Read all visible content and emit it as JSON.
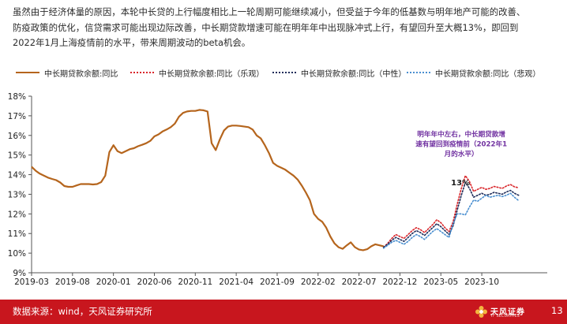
{
  "intro": {
    "lines": [
      "虽然由于经济体量的原因，本轮中长贷的上行幅度相比上一轮周期可能继续减小，但受益于今年的低基数与明年地产可能的改善、",
      "防疫政策的优化，信贷需求可能出现边际改善，中长期贷款增速可能在明年年中出现脉冲式上行，有望回升至大概13%，即回到",
      "2022年1月上海疫情前的水平，带来周期波动的beta机会。"
    ]
  },
  "legend": [
    {
      "label": "中长期贷款余额:同比",
      "color": "#b5651d",
      "style": "solid"
    },
    {
      "label": "中长期贷款余额:同比（乐观）",
      "color": "#d9262b",
      "style": "dotted"
    },
    {
      "label": "中长期贷款余额:同比（中性）",
      "color": "#1f2d5a",
      "style": "dotted"
    },
    {
      "label": "中长期贷款余额:同比（悲观）",
      "color": "#4a8fd0",
      "style": "dotted"
    }
  ],
  "chart_data": {
    "type": "line",
    "title": "",
    "xlabel": "",
    "ylabel": "",
    "ylim": [
      9,
      18
    ],
    "yticks": [
      "9%",
      "10%",
      "11%",
      "12%",
      "13%",
      "14%",
      "15%",
      "16%",
      "17%",
      "18%"
    ],
    "x_range_months": [
      0,
      63
    ],
    "xtick_labels": [
      {
        "label": "2019-03",
        "m": 0
      },
      {
        "label": "2019-08",
        "m": 5
      },
      {
        "label": "2020-01",
        "m": 10
      },
      {
        "label": "2020-06",
        "m": 15
      },
      {
        "label": "2020-11",
        "m": 20
      },
      {
        "label": "2021-04",
        "m": 25
      },
      {
        "label": "2021-09",
        "m": 30
      },
      {
        "label": "2022-02",
        "m": 35
      },
      {
        "label": "2022-07",
        "m": 40
      },
      {
        "label": "2022-12",
        "m": 45
      },
      {
        "label": "2023-05",
        "m": 50
      },
      {
        "label": "2023-10",
        "m": 55
      }
    ],
    "series": [
      {
        "name": "中长期贷款余额:同比",
        "color": "#b5651d",
        "style": "solid",
        "points": [
          [
            0,
            14.4
          ],
          [
            0.5,
            14.2
          ],
          [
            1,
            14.05
          ],
          [
            1.5,
            13.95
          ],
          [
            2,
            13.85
          ],
          [
            2.5,
            13.78
          ],
          [
            3,
            13.72
          ],
          [
            3.5,
            13.6
          ],
          [
            4,
            13.42
          ],
          [
            4.5,
            13.38
          ],
          [
            5,
            13.38
          ],
          [
            5.5,
            13.45
          ],
          [
            6,
            13.52
          ],
          [
            6.5,
            13.52
          ],
          [
            7,
            13.52
          ],
          [
            7.5,
            13.5
          ],
          [
            8,
            13.52
          ],
          [
            8.5,
            13.62
          ],
          [
            9,
            13.95
          ],
          [
            9.5,
            15.15
          ],
          [
            10,
            15.5
          ],
          [
            10.5,
            15.2
          ],
          [
            11,
            15.1
          ],
          [
            11.5,
            15.2
          ],
          [
            12,
            15.3
          ],
          [
            12.5,
            15.35
          ],
          [
            13,
            15.45
          ],
          [
            13.5,
            15.52
          ],
          [
            14,
            15.6
          ],
          [
            14.5,
            15.72
          ],
          [
            15,
            15.95
          ],
          [
            15.5,
            16.05
          ],
          [
            16,
            16.2
          ],
          [
            16.5,
            16.3
          ],
          [
            17,
            16.42
          ],
          [
            17.5,
            16.6
          ],
          [
            18,
            16.95
          ],
          [
            18.5,
            17.15
          ],
          [
            19,
            17.22
          ],
          [
            19.5,
            17.25
          ],
          [
            20,
            17.25
          ],
          [
            20.5,
            17.3
          ],
          [
            21,
            17.28
          ],
          [
            21.5,
            17.22
          ],
          [
            22,
            15.6
          ],
          [
            22.5,
            15.25
          ],
          [
            23,
            15.8
          ],
          [
            23.5,
            16.25
          ],
          [
            24,
            16.45
          ],
          [
            24.5,
            16.5
          ],
          [
            25,
            16.5
          ],
          [
            25.5,
            16.48
          ],
          [
            26,
            16.45
          ],
          [
            26.5,
            16.42
          ],
          [
            27,
            16.3
          ],
          [
            27.5,
            16.0
          ],
          [
            28,
            15.85
          ],
          [
            28.5,
            15.5
          ],
          [
            29,
            15.1
          ],
          [
            29.5,
            14.6
          ],
          [
            30,
            14.45
          ],
          [
            30.5,
            14.35
          ],
          [
            31,
            14.25
          ],
          [
            31.5,
            14.1
          ],
          [
            32,
            13.95
          ],
          [
            32.5,
            13.75
          ],
          [
            33,
            13.45
          ],
          [
            33.5,
            13.1
          ],
          [
            34,
            12.7
          ],
          [
            34.5,
            12.0
          ],
          [
            35,
            11.75
          ],
          [
            35.5,
            11.6
          ],
          [
            36,
            11.3
          ],
          [
            36.5,
            10.85
          ],
          [
            37,
            10.5
          ],
          [
            37.5,
            10.3
          ],
          [
            38,
            10.22
          ],
          [
            38.5,
            10.4
          ],
          [
            39,
            10.55
          ],
          [
            39.5,
            10.3
          ],
          [
            40,
            10.18
          ],
          [
            40.5,
            10.15
          ],
          [
            41,
            10.2
          ],
          [
            41.5,
            10.35
          ],
          [
            42,
            10.45
          ],
          [
            42.5,
            10.4
          ],
          [
            43,
            10.35
          ]
        ]
      },
      {
        "name": "中长期贷款余额:同比（乐观）",
        "color": "#d9262b",
        "style": "dotted",
        "points": [
          [
            43,
            10.3
          ],
          [
            43.5,
            10.5
          ],
          [
            44,
            10.75
          ],
          [
            44.5,
            10.95
          ],
          [
            45,
            10.85
          ],
          [
            45.5,
            10.75
          ],
          [
            46,
            10.95
          ],
          [
            46.5,
            11.15
          ],
          [
            47,
            11.3
          ],
          [
            47.5,
            11.2
          ],
          [
            48,
            11.05
          ],
          [
            48.5,
            11.25
          ],
          [
            49,
            11.45
          ],
          [
            49.5,
            11.7
          ],
          [
            50,
            11.55
          ],
          [
            50.5,
            11.3
          ],
          [
            51,
            11.1
          ],
          [
            51.5,
            11.6
          ],
          [
            52,
            12.5
          ],
          [
            52.5,
            13.3
          ],
          [
            53,
            13.95
          ],
          [
            53.5,
            13.65
          ],
          [
            54,
            13.15
          ],
          [
            54.5,
            13.25
          ],
          [
            55,
            13.35
          ],
          [
            55.5,
            13.25
          ],
          [
            56,
            13.3
          ],
          [
            56.5,
            13.4
          ],
          [
            57,
            13.35
          ],
          [
            57.5,
            13.3
          ],
          [
            58,
            13.42
          ],
          [
            58.5,
            13.5
          ],
          [
            59,
            13.38
          ],
          [
            59.5,
            13.33
          ]
        ]
      },
      {
        "name": "中长期贷款余额:同比（中性）",
        "color": "#1f2d5a",
        "style": "dotted",
        "points": [
          [
            43,
            10.3
          ],
          [
            43.5,
            10.45
          ],
          [
            44,
            10.65
          ],
          [
            44.5,
            10.8
          ],
          [
            45,
            10.7
          ],
          [
            45.5,
            10.6
          ],
          [
            46,
            10.8
          ],
          [
            46.5,
            11.0
          ],
          [
            47,
            11.15
          ],
          [
            47.5,
            11.05
          ],
          [
            48,
            10.9
          ],
          [
            48.5,
            11.1
          ],
          [
            49,
            11.3
          ],
          [
            49.5,
            11.5
          ],
          [
            50,
            11.35
          ],
          [
            50.5,
            11.15
          ],
          [
            51,
            10.95
          ],
          [
            51.5,
            11.4
          ],
          [
            52,
            12.2
          ],
          [
            52.5,
            12.95
          ],
          [
            53,
            13.6
          ],
          [
            53.5,
            13.3
          ],
          [
            54,
            12.85
          ],
          [
            54.5,
            12.95
          ],
          [
            55,
            13.05
          ],
          [
            55.5,
            12.95
          ],
          [
            56,
            13.0
          ],
          [
            56.5,
            13.1
          ],
          [
            57,
            13.05
          ],
          [
            57.5,
            13.0
          ],
          [
            58,
            13.12
          ],
          [
            58.5,
            13.2
          ],
          [
            59,
            13.05
          ],
          [
            59.5,
            12.95
          ]
        ]
      },
      {
        "name": "中长期贷款余额:同比（悲观）",
        "color": "#4a8fd0",
        "style": "dotted",
        "points": [
          [
            43,
            10.25
          ],
          [
            43.5,
            10.4
          ],
          [
            44,
            10.55
          ],
          [
            44.5,
            10.65
          ],
          [
            45,
            10.55
          ],
          [
            45.5,
            10.45
          ],
          [
            46,
            10.6
          ],
          [
            46.5,
            10.8
          ],
          [
            47,
            10.95
          ],
          [
            47.5,
            10.85
          ],
          [
            48,
            10.7
          ],
          [
            48.5,
            10.9
          ],
          [
            49,
            11.1
          ],
          [
            49.5,
            11.25
          ],
          [
            50,
            11.1
          ],
          [
            50.5,
            10.95
          ],
          [
            51,
            10.8
          ],
          [
            51.5,
            11.5
          ],
          [
            52,
            12.0
          ],
          [
            52.5,
            12.0
          ],
          [
            53,
            11.95
          ],
          [
            53.5,
            12.35
          ],
          [
            54,
            12.7
          ],
          [
            54.5,
            12.65
          ],
          [
            55,
            12.8
          ],
          [
            55.5,
            12.95
          ],
          [
            56,
            12.85
          ],
          [
            56.5,
            12.9
          ],
          [
            57,
            12.95
          ],
          [
            57.5,
            12.88
          ],
          [
            58,
            12.95
          ],
          [
            58.5,
            13.05
          ],
          [
            59,
            12.85
          ],
          [
            59.5,
            12.68
          ]
        ]
      }
    ],
    "annotations": [
      {
        "id": "forecast-note",
        "lines": [
          "明年年中左右，中长期贷款增",
          "速有望回到疫情前（2022年1",
          "月的水平）"
        ],
        "color": "#7030a0"
      },
      {
        "id": "peak-label",
        "text": "13%",
        "color": "#1a1a1a"
      }
    ]
  },
  "footer": {
    "source": "数据来源：wind，天风证券研究所",
    "brand": "天风证券",
    "brand_sub": "TF SECURITIES",
    "page": "13"
  }
}
